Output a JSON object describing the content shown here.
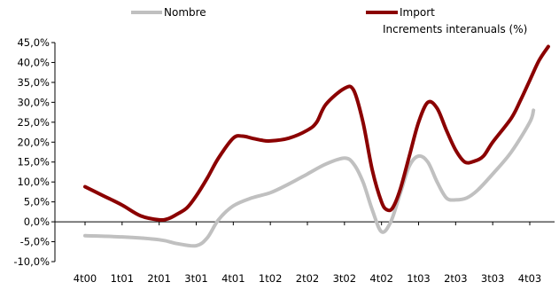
{
  "chart_data": {
    "type": "line",
    "subtitle": "Increments interanuals (%)",
    "x_tick_labels": [
      "4t00",
      "1t01",
      "2t01",
      "3t01",
      "4t01",
      "1t02",
      "2t02",
      "3t02",
      "4t02",
      "1t03",
      "2t03",
      "3t03",
      "4t03"
    ],
    "y_tick_labels": [
      "45,0%",
      "40,0%",
      "35,0%",
      "30,0%",
      "25,0%",
      "20,0%",
      "15,0%",
      "10,0%",
      "5,0%",
      "0,0%",
      "-5,0%",
      "-10,0%"
    ],
    "ylim": [
      -10,
      45
    ],
    "y_step": 5,
    "grid": false,
    "legend_position": "top",
    "series": [
      {
        "name": "Nombre",
        "color": "#c0c0c0",
        "points": [
          [
            0,
            -3.5
          ],
          [
            1,
            -3.8
          ],
          [
            2,
            -4.5
          ],
          [
            2.5,
            -5.5
          ],
          [
            3,
            -6.0
          ],
          [
            3.3,
            -4.0
          ],
          [
            3.6,
            0.5
          ],
          [
            4,
            4.0
          ],
          [
            4.5,
            6.0
          ],
          [
            5,
            7.3
          ],
          [
            5.5,
            9.5
          ],
          [
            6,
            12.0
          ],
          [
            6.5,
            14.5
          ],
          [
            7,
            16.0
          ],
          [
            7.25,
            14.5
          ],
          [
            7.5,
            10.0
          ],
          [
            7.75,
            3.0
          ],
          [
            8,
            -2.5
          ],
          [
            8.25,
            0.0
          ],
          [
            8.5,
            7.0
          ],
          [
            8.75,
            14.0
          ],
          [
            9,
            16.5
          ],
          [
            9.25,
            15.0
          ],
          [
            9.5,
            10.0
          ],
          [
            9.75,
            6.0
          ],
          [
            10,
            5.5
          ],
          [
            10.3,
            6.0
          ],
          [
            10.6,
            8.0
          ],
          [
            11,
            12.0
          ],
          [
            11.5,
            17.5
          ],
          [
            12,
            25.0
          ],
          [
            12.1,
            28.0
          ]
        ]
      },
      {
        "name": "Import",
        "color": "#8b0000",
        "points": [
          [
            0,
            8.8
          ],
          [
            0.5,
            6.5
          ],
          [
            1,
            4.2
          ],
          [
            1.5,
            1.5
          ],
          [
            2,
            0.5
          ],
          [
            2.25,
            0.8
          ],
          [
            2.5,
            2.0
          ],
          [
            2.75,
            3.5
          ],
          [
            3,
            6.5
          ],
          [
            3.3,
            11.0
          ],
          [
            3.6,
            16.0
          ],
          [
            4,
            21.0
          ],
          [
            4.25,
            21.5
          ],
          [
            4.5,
            21.0
          ],
          [
            4.75,
            20.5
          ],
          [
            5,
            20.3
          ],
          [
            5.5,
            21.0
          ],
          [
            6,
            23.0
          ],
          [
            6.25,
            25.0
          ],
          [
            6.5,
            29.5
          ],
          [
            7,
            33.5
          ],
          [
            7.25,
            33.0
          ],
          [
            7.5,
            25.0
          ],
          [
            7.75,
            13.0
          ],
          [
            8,
            5.0
          ],
          [
            8.15,
            3.0
          ],
          [
            8.3,
            3.5
          ],
          [
            8.5,
            8.0
          ],
          [
            8.75,
            16.5
          ],
          [
            9,
            25.0
          ],
          [
            9.25,
            30.0
          ],
          [
            9.5,
            28.5
          ],
          [
            9.75,
            23.0
          ],
          [
            10,
            18.0
          ],
          [
            10.25,
            15.0
          ],
          [
            10.5,
            15.2
          ],
          [
            10.75,
            16.5
          ],
          [
            11,
            20.0
          ],
          [
            11.5,
            26.0
          ],
          [
            11.75,
            30.5
          ],
          [
            12,
            35.5
          ],
          [
            12.25,
            40.5
          ],
          [
            12.5,
            44.0
          ]
        ]
      }
    ]
  }
}
